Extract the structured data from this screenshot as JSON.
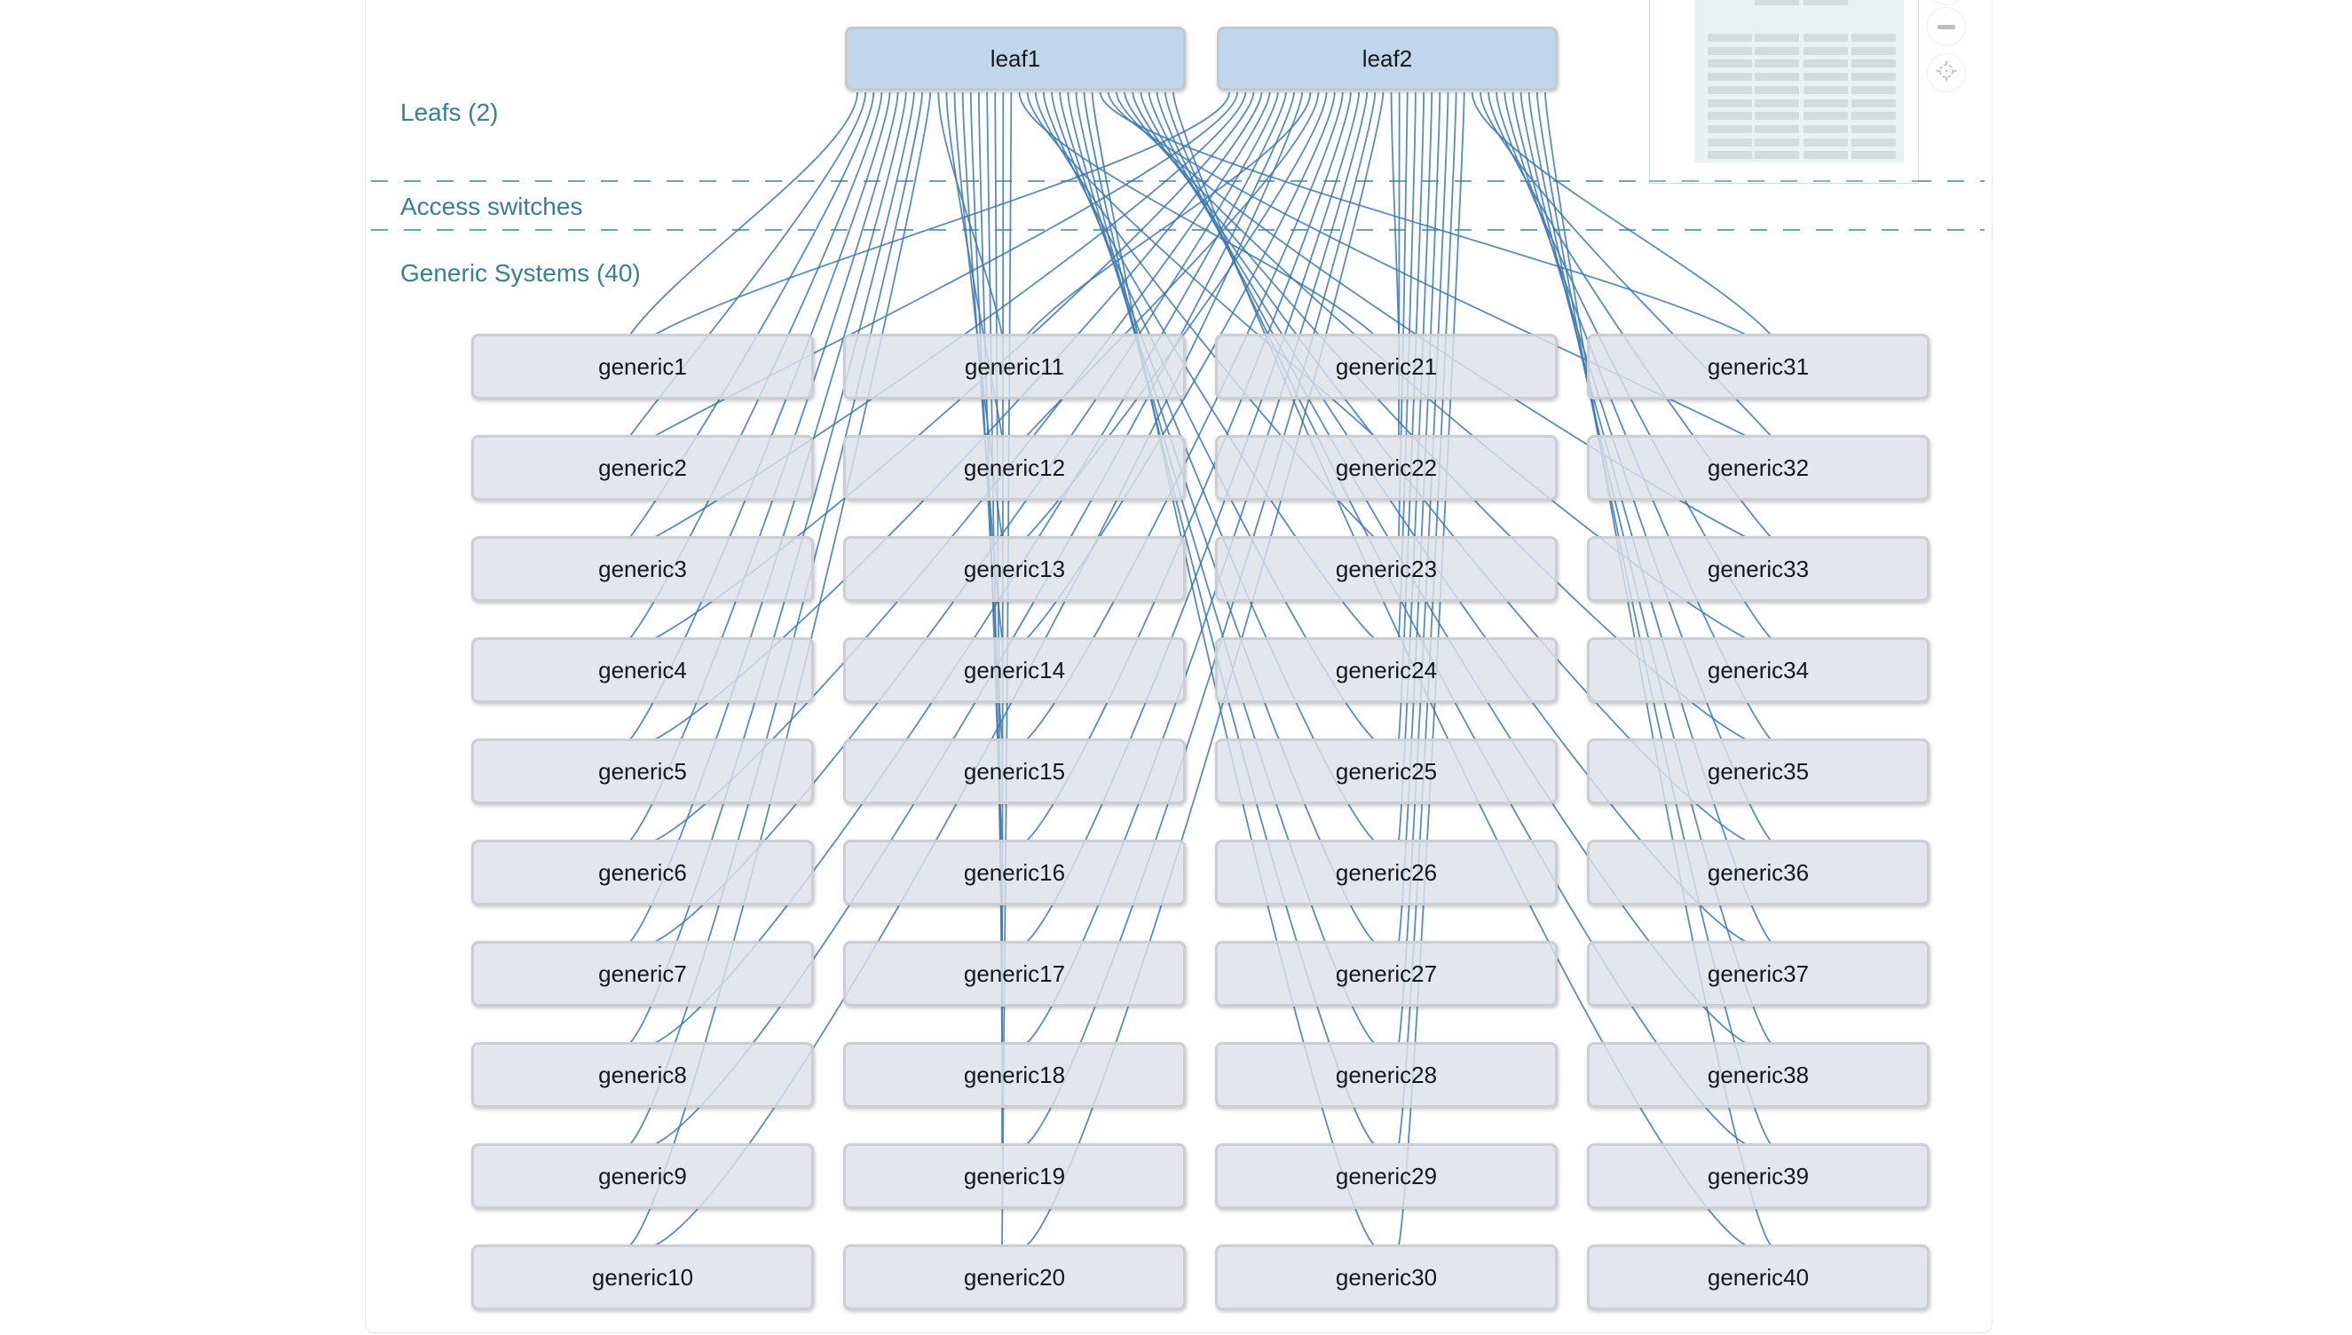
{
  "topology": {
    "tier_labels": {
      "leafs": "Leafs (2)",
      "access": "Access switches",
      "generics": "Generic Systems (40)"
    },
    "leafs": [
      "leaf1",
      "leaf2"
    ],
    "generics": [
      "generic1",
      "generic2",
      "generic3",
      "generic4",
      "generic5",
      "generic6",
      "generic7",
      "generic8",
      "generic9",
      "generic10",
      "generic11",
      "generic12",
      "generic13",
      "generic14",
      "generic15",
      "generic16",
      "generic17",
      "generic18",
      "generic19",
      "generic20",
      "generic21",
      "generic22",
      "generic23",
      "generic24",
      "generic25",
      "generic26",
      "generic27",
      "generic28",
      "generic29",
      "generic30",
      "generic31",
      "generic32",
      "generic33",
      "generic34",
      "generic35",
      "generic36",
      "generic37",
      "generic38",
      "generic39",
      "generic40"
    ],
    "links": {
      "rule": "each generic system has one link to leaf1 and one link to leaf2",
      "count": 80
    }
  },
  "minimap": {
    "grid_rows": 10,
    "grid_cols": 4,
    "leaf_bars": 2
  },
  "controls": {
    "zoom_out_glyph": "−"
  },
  "colors": {
    "link": "#3c78b0",
    "leaf_fill": "#bcd3ec",
    "generic_fill": "#dde1e9",
    "node_border": "#cacccf",
    "tier_label": "#3a7f8f",
    "dashed_separator": "#4f96a4",
    "minimap_bar": "#d4dbdc",
    "minimap_viewport": "#eaf1f3"
  }
}
